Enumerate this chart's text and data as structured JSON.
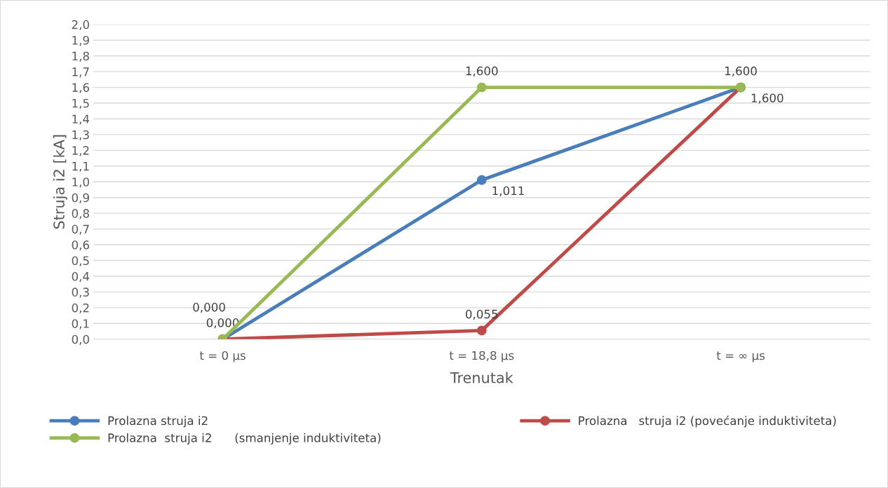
{
  "chart_data": {
    "type": "line",
    "xlabel": "Trenutak",
    "ylabel": "Struja i2 [kA]",
    "categories": [
      "t = 0 µs",
      "t = 18,8 µs",
      "t = ∞ µs"
    ],
    "series": [
      {
        "name": "Prolazna struja i2",
        "color": "#4a7ebb",
        "values": [
          0.0,
          1.011,
          1.6
        ],
        "value_labels": [
          null,
          "1,011",
          "1,600"
        ]
      },
      {
        "name": "Prolazna   struja i2 (povećanje induktiviteta)",
        "color": "#be4b48",
        "values": [
          0.0,
          0.055,
          1.6
        ],
        "value_labels": [
          "0,000",
          "0,055",
          null
        ]
      },
      {
        "name": "Prolazna  struja i2      (smanjenje induktiviteta)",
        "color": "#98b954",
        "values": [
          0.0,
          1.6,
          1.6
        ],
        "value_labels": [
          "0,000",
          "1,600",
          "1,600"
        ]
      }
    ],
    "ylim": [
      0,
      2.0
    ],
    "yticks": [
      {
        "value": 0,
        "label": "0,0"
      },
      {
        "value": 0.1,
        "label": "0,1"
      },
      {
        "value": 0.2,
        "label": "0,2"
      },
      {
        "value": 0.3,
        "label": "0,3"
      },
      {
        "value": 0.4,
        "label": "0,4"
      },
      {
        "value": 0.5,
        "label": "0,5"
      },
      {
        "value": 0.6,
        "label": "0,6"
      },
      {
        "value": 0.7,
        "label": "0,7"
      },
      {
        "value": 0.8,
        "label": "0,8"
      },
      {
        "value": 0.9,
        "label": "0,9"
      },
      {
        "value": 1.0,
        "label": "1,0"
      },
      {
        "value": 1.1,
        "label": "1,1"
      },
      {
        "value": 1.2,
        "label": "1,2"
      },
      {
        "value": 1.3,
        "label": "1,3"
      },
      {
        "value": 1.4,
        "label": "1,4"
      },
      {
        "value": 1.5,
        "label": "1,5"
      },
      {
        "value": 1.6,
        "label": "1,6"
      },
      {
        "value": 1.7,
        "label": "1,7"
      },
      {
        "value": 1.8,
        "label": "1,8"
      },
      {
        "value": 1.9,
        "label": "1,9"
      },
      {
        "value": 2.0,
        "label": "2,0"
      }
    ],
    "grid": "y",
    "legend": "bottom",
    "marker": "circle",
    "line_style": "solid"
  }
}
